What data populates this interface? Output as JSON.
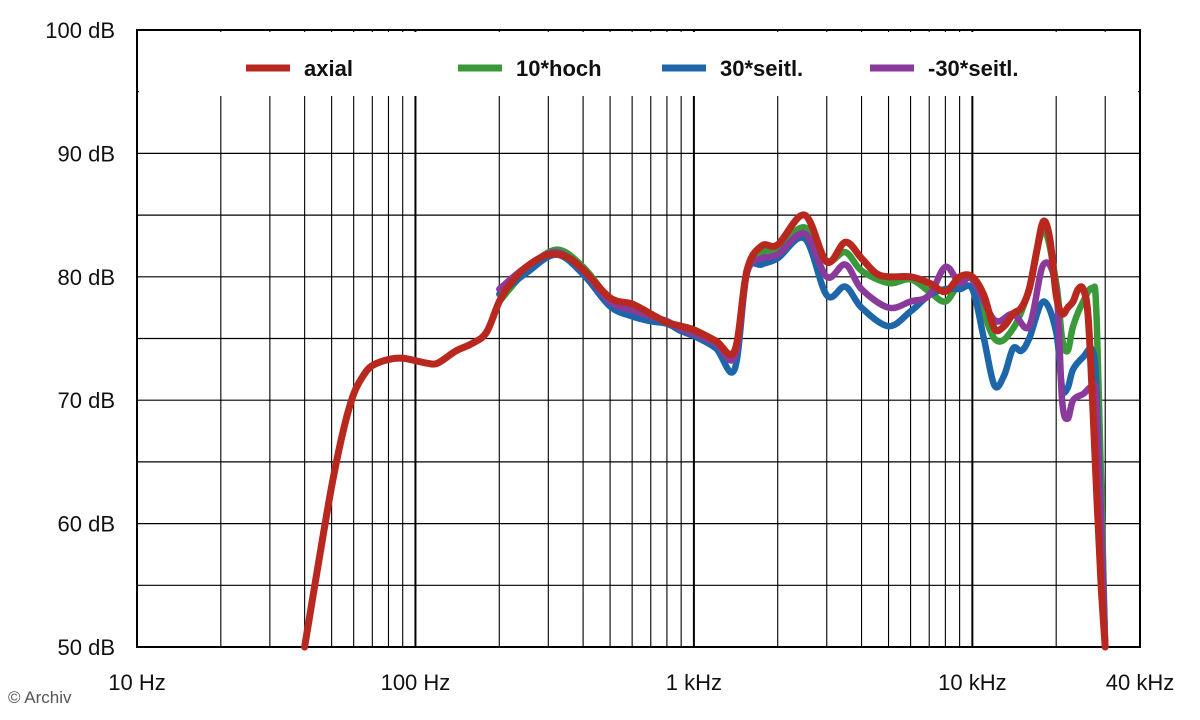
{
  "chart_data": {
    "type": "line",
    "x_scale": "log",
    "xlim": [
      10,
      40000
    ],
    "ylim": [
      50,
      100
    ],
    "grid": true,
    "legend_position": "top",
    "x_ticks": [
      {
        "value": 10,
        "label": "10 Hz"
      },
      {
        "value": 100,
        "label": "100 Hz"
      },
      {
        "value": 1000,
        "label": "1 kHz"
      },
      {
        "value": 10000,
        "label": "10 kHz"
      },
      {
        "value": 40000,
        "label": "40 kHz"
      }
    ],
    "y_ticks": [
      {
        "value": 50,
        "label": "50 dB"
      },
      {
        "value": 60,
        "label": "60 dB"
      },
      {
        "value": 70,
        "label": "70 dB"
      },
      {
        "value": 80,
        "label": "80 dB"
      },
      {
        "value": 90,
        "label": "90 dB"
      },
      {
        "value": 100,
        "label": "100 dB"
      }
    ],
    "series": [
      {
        "name": "10*hoch",
        "color": "#3a9a3a",
        "points": [
          [
            200,
            78.0
          ],
          [
            250,
            80.5
          ],
          [
            320,
            82.2
          ],
          [
            400,
            80.8
          ],
          [
            500,
            78.2
          ],
          [
            600,
            77.6
          ],
          [
            700,
            76.8
          ],
          [
            800,
            76.2
          ],
          [
            900,
            76.0
          ],
          [
            1000,
            75.7
          ],
          [
            1200,
            74.8
          ],
          [
            1400,
            73.8
          ],
          [
            1550,
            80.5
          ],
          [
            1750,
            82.0
          ],
          [
            2000,
            82.3
          ],
          [
            2500,
            84.0
          ],
          [
            3000,
            81.3
          ],
          [
            3500,
            82.0
          ],
          [
            4000,
            80.5
          ],
          [
            5000,
            79.5
          ],
          [
            6000,
            79.8
          ],
          [
            7000,
            78.8
          ],
          [
            8000,
            78.0
          ],
          [
            9000,
            79.5
          ],
          [
            10000,
            79.8
          ],
          [
            12000,
            75.0
          ],
          [
            14000,
            75.8
          ],
          [
            16000,
            79.0
          ],
          [
            18000,
            83.8
          ],
          [
            20000,
            79.5
          ],
          [
            21000,
            75.0
          ],
          [
            22000,
            74.0
          ],
          [
            23000,
            76.0
          ],
          [
            25000,
            78.0
          ],
          [
            27000,
            79.0
          ],
          [
            28000,
            76.0
          ],
          [
            30000,
            50.0
          ]
        ]
      },
      {
        "name": "30*seitl.",
        "color": "#1e66aa",
        "points": [
          [
            200,
            78.6
          ],
          [
            250,
            80.3
          ],
          [
            320,
            81.8
          ],
          [
            400,
            80.2
          ],
          [
            500,
            77.6
          ],
          [
            600,
            76.8
          ],
          [
            700,
            76.4
          ],
          [
            800,
            76.2
          ],
          [
            900,
            75.6
          ],
          [
            1000,
            75.2
          ],
          [
            1200,
            74.2
          ],
          [
            1400,
            72.5
          ],
          [
            1550,
            80.3
          ],
          [
            1750,
            81.0
          ],
          [
            2000,
            81.5
          ],
          [
            2500,
            83.1
          ],
          [
            3000,
            78.5
          ],
          [
            3500,
            79.2
          ],
          [
            4000,
            77.5
          ],
          [
            5000,
            76.0
          ],
          [
            6000,
            77.2
          ],
          [
            7000,
            78.5
          ],
          [
            8000,
            79.0
          ],
          [
            9000,
            79.0
          ],
          [
            10000,
            79.0
          ],
          [
            11000,
            75.0
          ],
          [
            12000,
            71.2
          ],
          [
            13000,
            72.0
          ],
          [
            14000,
            74.2
          ],
          [
            15000,
            74.0
          ],
          [
            16000,
            75.0
          ],
          [
            18000,
            78.0
          ],
          [
            20000,
            75.5
          ],
          [
            21000,
            71.0
          ],
          [
            22000,
            71.0
          ],
          [
            23000,
            72.5
          ],
          [
            25000,
            73.5
          ],
          [
            27000,
            74.0
          ],
          [
            28000,
            70.0
          ],
          [
            30000,
            50.0
          ]
        ]
      },
      {
        "name": "-30*seitl.",
        "color": "#8a3a9a",
        "points": [
          [
            200,
            79.0
          ],
          [
            250,
            80.8
          ],
          [
            320,
            82.0
          ],
          [
            400,
            80.5
          ],
          [
            500,
            78.0
          ],
          [
            600,
            77.3
          ],
          [
            700,
            76.8
          ],
          [
            800,
            76.4
          ],
          [
            900,
            75.8
          ],
          [
            1000,
            75.4
          ],
          [
            1200,
            74.6
          ],
          [
            1400,
            73.5
          ],
          [
            1550,
            80.3
          ],
          [
            1750,
            81.5
          ],
          [
            2000,
            81.8
          ],
          [
            2500,
            83.5
          ],
          [
            3000,
            80.0
          ],
          [
            3500,
            81.0
          ],
          [
            4000,
            79.0
          ],
          [
            5000,
            77.5
          ],
          [
            6000,
            78.0
          ],
          [
            7000,
            78.5
          ],
          [
            8000,
            80.8
          ],
          [
            9000,
            79.5
          ],
          [
            10000,
            79.8
          ],
          [
            12000,
            76.5
          ],
          [
            14000,
            77.0
          ],
          [
            16000,
            76.0
          ],
          [
            18000,
            81.0
          ],
          [
            20000,
            79.0
          ],
          [
            21000,
            70.0
          ],
          [
            22000,
            68.5
          ],
          [
            23000,
            70.0
          ],
          [
            25000,
            70.5
          ],
          [
            27000,
            71.0
          ],
          [
            28000,
            69.0
          ],
          [
            30000,
            50.0
          ]
        ]
      },
      {
        "name": "axial",
        "color": "#b8281e",
        "points": [
          [
            40,
            50.0
          ],
          [
            45,
            57.0
          ],
          [
            50,
            63.0
          ],
          [
            55,
            67.5
          ],
          [
            60,
            70.5
          ],
          [
            65,
            72.0
          ],
          [
            70,
            72.8
          ],
          [
            80,
            73.3
          ],
          [
            90,
            73.4
          ],
          [
            100,
            73.2
          ],
          [
            110,
            73.0
          ],
          [
            120,
            73.0
          ],
          [
            140,
            74.0
          ],
          [
            160,
            74.6
          ],
          [
            180,
            75.5
          ],
          [
            200,
            78.0
          ],
          [
            220,
            79.5
          ],
          [
            250,
            80.8
          ],
          [
            300,
            81.8
          ],
          [
            350,
            81.6
          ],
          [
            400,
            80.6
          ],
          [
            500,
            78.3
          ],
          [
            600,
            77.8
          ],
          [
            700,
            77.0
          ],
          [
            800,
            76.3
          ],
          [
            900,
            76.0
          ],
          [
            1000,
            75.7
          ],
          [
            1200,
            74.8
          ],
          [
            1400,
            74.0
          ],
          [
            1550,
            80.5
          ],
          [
            1750,
            82.5
          ],
          [
            2000,
            82.6
          ],
          [
            2500,
            85.0
          ],
          [
            3000,
            81.2
          ],
          [
            3500,
            82.8
          ],
          [
            4000,
            81.5
          ],
          [
            4500,
            80.3
          ],
          [
            5000,
            80.0
          ],
          [
            6000,
            80.0
          ],
          [
            7000,
            79.5
          ],
          [
            8000,
            78.8
          ],
          [
            9000,
            80.0
          ],
          [
            10000,
            80.0
          ],
          [
            11000,
            78.5
          ],
          [
            12000,
            75.8
          ],
          [
            13000,
            76.0
          ],
          [
            14000,
            77.0
          ],
          [
            15000,
            77.5
          ],
          [
            16000,
            79.0
          ],
          [
            17000,
            82.0
          ],
          [
            18000,
            84.5
          ],
          [
            19000,
            83.0
          ],
          [
            20000,
            78.5
          ],
          [
            21000,
            77.0
          ],
          [
            22000,
            77.5
          ],
          [
            23000,
            78.0
          ],
          [
            24000,
            79.0
          ],
          [
            25000,
            79.0
          ],
          [
            26000,
            77.0
          ],
          [
            27000,
            70.0
          ],
          [
            28000,
            62.0
          ],
          [
            29000,
            55.0
          ],
          [
            30000,
            50.0
          ]
        ]
      }
    ],
    "legend": [
      {
        "label": "axial",
        "color": "#b8281e"
      },
      {
        "label": "10*hoch",
        "color": "#3a9a3a"
      },
      {
        "label": "30*seitl.",
        "color": "#1e66aa"
      },
      {
        "label": "-30*seitl.",
        "color": "#8a3a9a"
      }
    ]
  },
  "copyright": "© Archiv"
}
